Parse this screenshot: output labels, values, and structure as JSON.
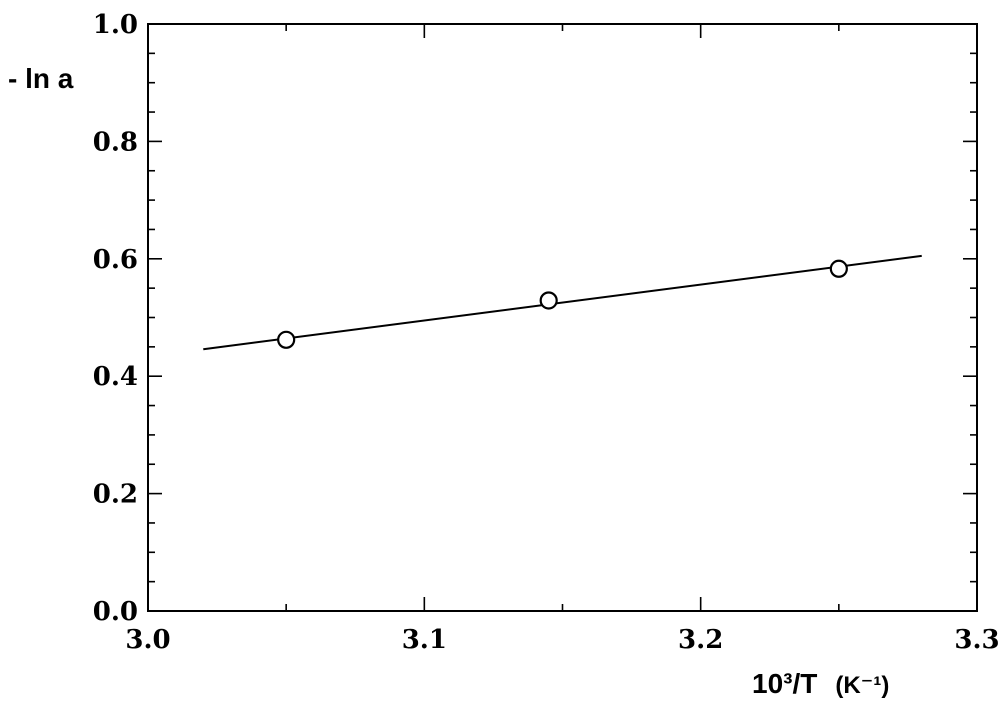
{
  "chart_data": {
    "type": "scatter",
    "title": "",
    "xlabel": "10³/T",
    "xlabel_unit": "(K⁻¹)",
    "ylabel": "- ln a",
    "xlim": [
      3.0,
      3.3
    ],
    "ylim": [
      0.0,
      1.0
    ],
    "x_major_ticks": [
      3.0,
      3.1,
      3.2,
      3.3
    ],
    "x_tick_labels": [
      "3.0",
      "3.1",
      "3.2",
      "3.3"
    ],
    "x_minor_step": 0.05,
    "y_major_ticks": [
      0.0,
      0.2,
      0.4,
      0.6,
      0.8,
      1.0
    ],
    "y_tick_labels": [
      "0.0",
      "0.2",
      "0.4",
      "0.6",
      "0.8",
      "1.0"
    ],
    "y_minor_step": 0.05,
    "grid": false,
    "legend": "none",
    "series": [
      {
        "marker": "open-circle",
        "x": [
          3.05,
          3.145,
          3.25
        ],
        "y": [
          0.462,
          0.529,
          0.583
        ]
      }
    ],
    "fit_line": {
      "x": [
        3.02,
        3.28
      ],
      "y": [
        0.446,
        0.605
      ]
    },
    "colors": {
      "ink": "#000000",
      "background": "#ffffff",
      "marker_fill": "#ffffff"
    }
  }
}
